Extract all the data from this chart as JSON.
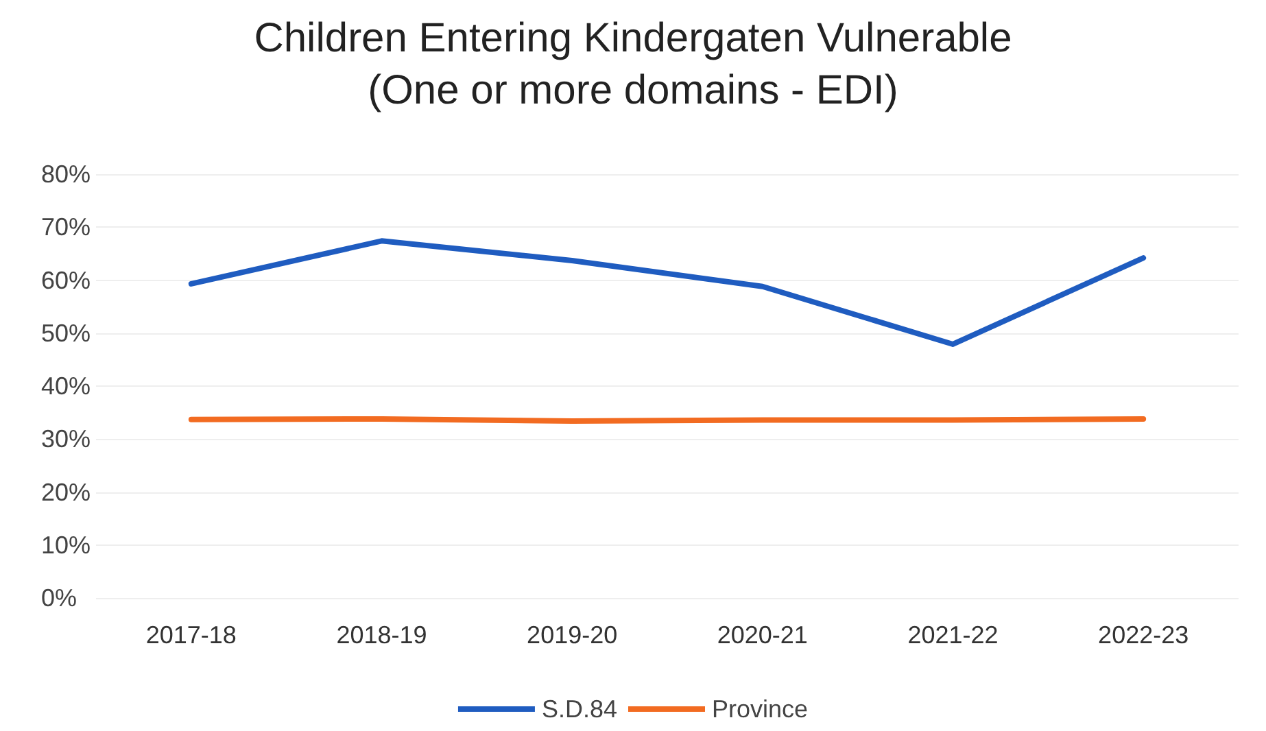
{
  "chart_data": {
    "type": "line",
    "title": "Children Entering Kindergaten Vulnerable",
    "subtitle": "(One or more domains - EDI)",
    "categories": [
      "2017-18",
      "2018-19",
      "2019-20",
      "2020-21",
      "2021-22",
      "2022-23"
    ],
    "series": [
      {
        "name": "S.D.84",
        "color": "#1f5cc0",
        "values": [
          59.3,
          67.4,
          63.7,
          58.8,
          47.9,
          64.2
        ]
      },
      {
        "name": "Province",
        "color": "#f26b21",
        "values": [
          33.7,
          33.8,
          33.4,
          33.6,
          33.6,
          33.8
        ]
      }
    ],
    "ylim": [
      0,
      80
    ],
    "yticks": [
      {
        "value": 0,
        "label": "0%"
      },
      {
        "value": 10,
        "label": "10%"
      },
      {
        "value": 20,
        "label": "20%"
      },
      {
        "value": 30,
        "label": "30%"
      },
      {
        "value": 40,
        "label": "40%"
      },
      {
        "value": 50,
        "label": "50%"
      },
      {
        "value": 60,
        "label": "60%"
      },
      {
        "value": 70,
        "label": "70%"
      },
      {
        "value": 80,
        "label": "80%"
      }
    ],
    "grid": true,
    "legend": "bottom",
    "marker": "none",
    "line_style": "solid"
  }
}
